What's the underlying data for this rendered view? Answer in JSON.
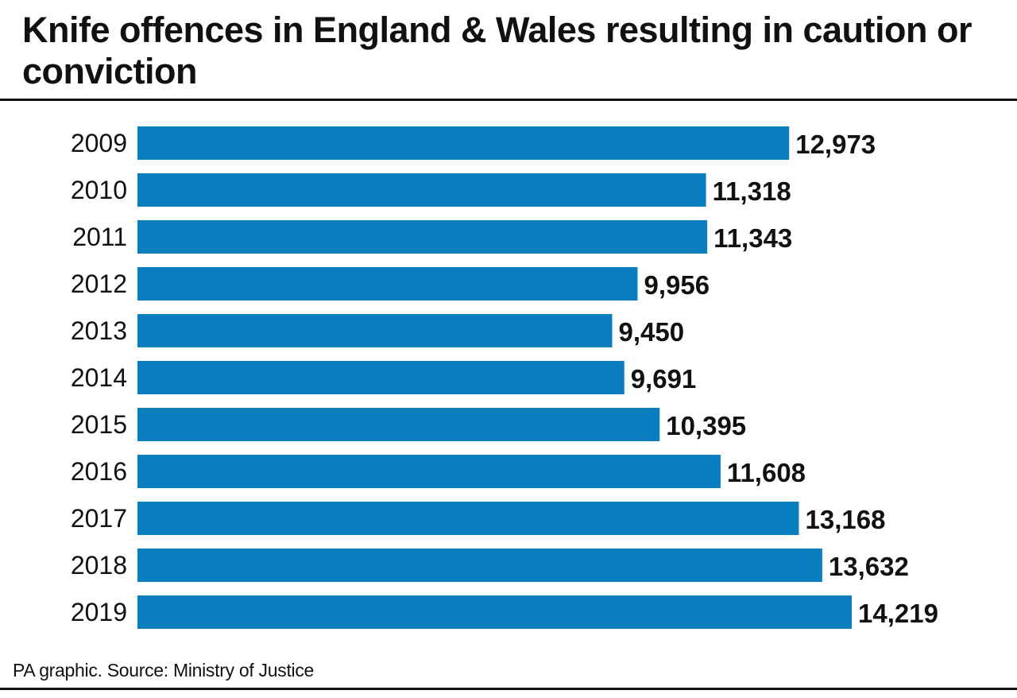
{
  "chart_data": {
    "type": "bar",
    "orientation": "horizontal",
    "title": "Knife offences in England & Wales resulting in caution or conviction",
    "categories": [
      "2009",
      "2010",
      "2011",
      "2012",
      "2013",
      "2014",
      "2015",
      "2016",
      "2017",
      "2018",
      "2019"
    ],
    "values": [
      12973,
      11318,
      11343,
      9956,
      9450,
      9691,
      10395,
      11608,
      13168,
      13632,
      14219
    ],
    "value_labels": [
      "12,973",
      "11,318",
      "11,343",
      "9,956",
      "9,450",
      "9,691",
      "10,395",
      "11,608",
      "13,168",
      "13,632",
      "14,219"
    ],
    "xlabel": "",
    "ylabel": "",
    "grid": false,
    "bar_color": "#0a7fbf"
  },
  "footer": {
    "source": "PA graphic. Source: Ministry of Justice"
  }
}
